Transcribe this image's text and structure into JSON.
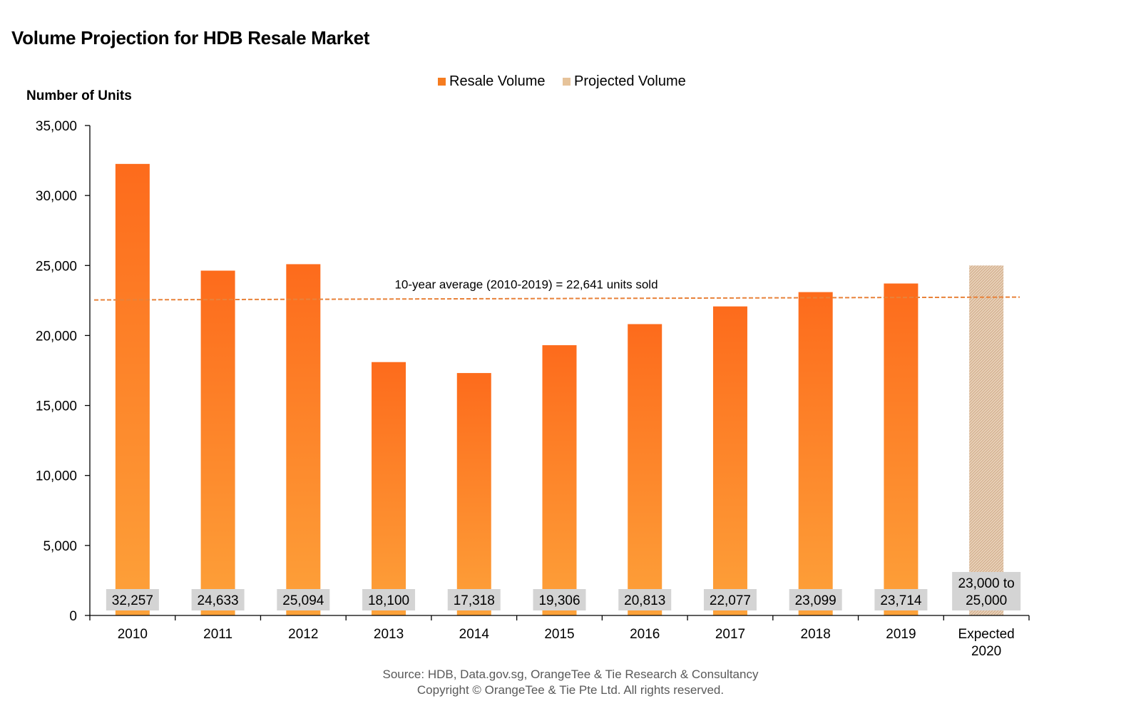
{
  "title": "Volume Projection for HDB Resale Market",
  "legend": {
    "resale": {
      "label": "Resale Volume",
      "color": "#f57c20"
    },
    "projected": {
      "label": "Projected Volume",
      "color": "#e6c39a"
    }
  },
  "source_line1": "Source: HDB, Data.gov.sg, OrangeTee & Tie Research & Consultancy",
  "source_line2": "Copyright © OrangeTee & Tie Pte Ltd. All rights reserved.",
  "chart_data": {
    "type": "bar",
    "title": "Volume Projection for HDB Resale Market",
    "ylabel": "Number of Units",
    "xlabel": "",
    "ylim": [
      0,
      35000
    ],
    "yticks": [
      0,
      5000,
      10000,
      15000,
      20000,
      25000,
      30000,
      35000
    ],
    "ytick_labels": [
      "0",
      "5,000",
      "10,000",
      "15,000",
      "20,000",
      "25,000",
      "30,000",
      "35,000"
    ],
    "categories": [
      "2010",
      "2011",
      "2012",
      "2013",
      "2014",
      "2015",
      "2016",
      "2017",
      "2018",
      "2019",
      "Expected 2020"
    ],
    "series": [
      {
        "name": "Resale Volume",
        "values": [
          32257,
          24633,
          25094,
          18100,
          17318,
          19306,
          20813,
          22077,
          23099,
          23714,
          null
        ],
        "labels": [
          "32,257",
          "24,633",
          "25,094",
          "18,100",
          "17,318",
          "19,306",
          "20,813",
          "22,077",
          "23,099",
          "23,714",
          ""
        ]
      },
      {
        "name": "Projected Volume",
        "values": [
          null,
          null,
          null,
          null,
          null,
          null,
          null,
          null,
          null,
          null,
          25000
        ],
        "range": [
          23000,
          25000
        ],
        "labels": [
          "",
          "",
          "",
          "",
          "",
          "",
          "",
          "",
          "",
          "",
          "23,000 to 25,000"
        ]
      }
    ],
    "average_line": {
      "value": 22641,
      "label": "10-year average (2010-2019) = 22,641 units sold"
    },
    "colors": {
      "bar_top": "#fd6b1c",
      "bar_bottom": "#fda23a",
      "projected": "#dfc3a6",
      "average_line": "#e8823a",
      "label_box": "#d4d4d4"
    },
    "grid": false,
    "legend_position": "top-center"
  }
}
